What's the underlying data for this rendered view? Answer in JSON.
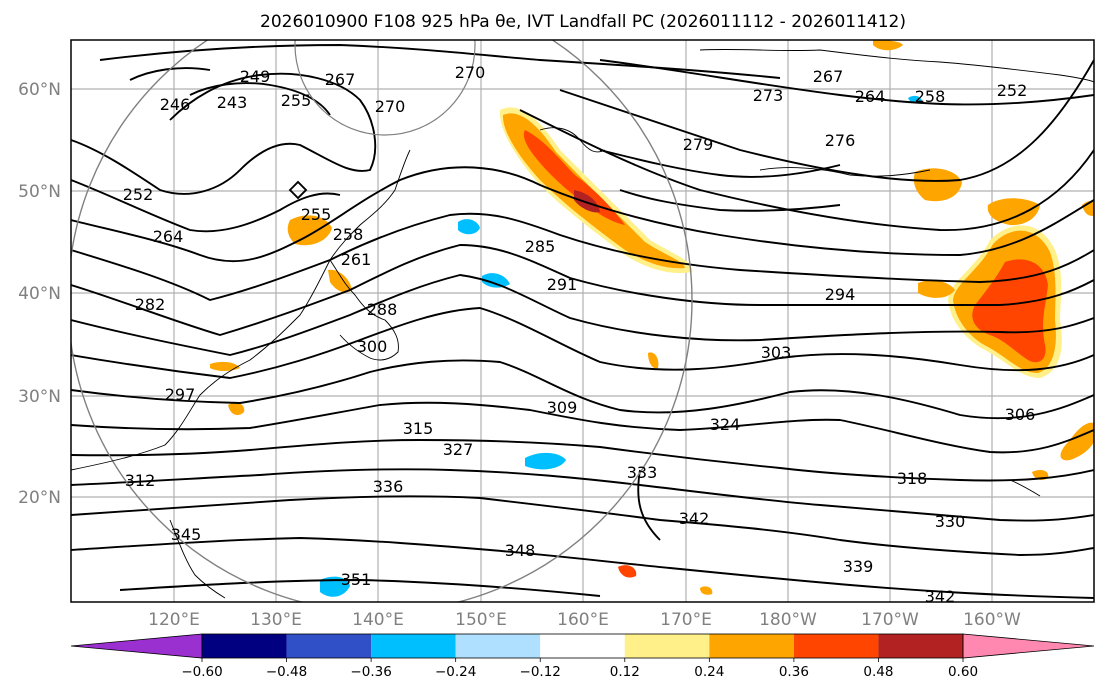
{
  "title": "2026010900 F108 925 hPa θe, IVT Landfall PC (2026011112 - 2026011412)",
  "colors": {
    "fill_pos_1": "#fff08a",
    "fill_pos_2": "#ffa500",
    "fill_pos_3": "#ff4500",
    "fill_neg_1": "#b0e0ff",
    "fill_neg_2": "#00bfff",
    "contour": "#000000",
    "grid": "#b0b0b0",
    "circle": "#808080"
  },
  "map": {
    "lat_labels": [
      "60°N",
      "50°N",
      "40°N",
      "30°N",
      "20°N"
    ],
    "lon_labels": [
      "120°E",
      "130°E",
      "140°E",
      "150°E",
      "160°E",
      "170°E",
      "180°W",
      "170°W",
      "160°W"
    ],
    "contour_labels": [
      "249",
      "243",
      "246",
      "252",
      "270",
      "270",
      "273",
      "267",
      "264",
      "258",
      "252",
      "255",
      "279",
      "276",
      "264",
      "258",
      "255",
      "261",
      "267",
      "285",
      "291",
      "294",
      "282",
      "288",
      "300",
      "303",
      "309",
      "306",
      "315",
      "327",
      "324",
      "297",
      "336",
      "333",
      "318",
      "312",
      "330",
      "342",
      "348",
      "339",
      "345",
      "351",
      "342"
    ]
  },
  "colorbar": {
    "labels": [
      "−0.60",
      "−0.48",
      "−0.36",
      "−0.24",
      "−0.12",
      "0.12",
      "0.24",
      "0.36",
      "0.48",
      "0.60"
    ],
    "colors": [
      "#9b30d0",
      "#000080",
      "#3050c8",
      "#00bfff",
      "#b0e0ff",
      "#ffffff",
      "#fff08a",
      "#ffa500",
      "#ff4500",
      "#b22222",
      "#ff88b0"
    ]
  }
}
